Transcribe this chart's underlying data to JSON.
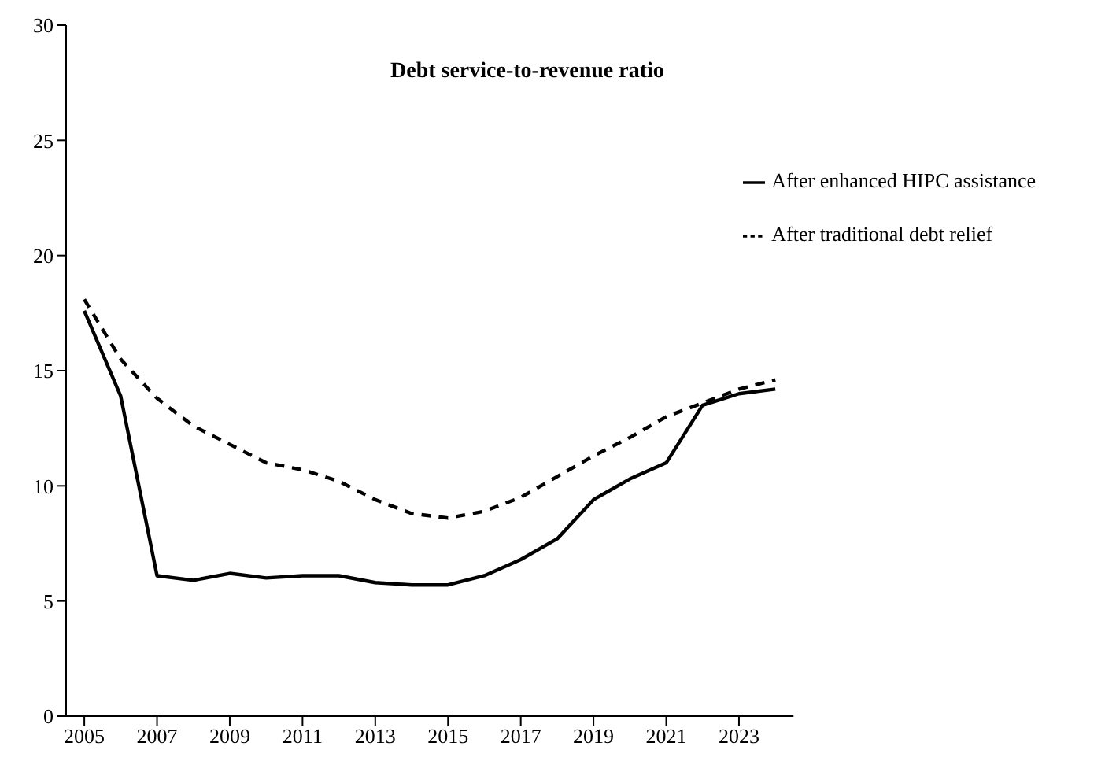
{
  "chart_data": {
    "type": "line",
    "title": "Debt service-to-revenue ratio",
    "x": [
      2005,
      2006,
      2007,
      2008,
      2009,
      2010,
      2011,
      2012,
      2013,
      2014,
      2015,
      2016,
      2017,
      2018,
      2019,
      2020,
      2021,
      2022,
      2023,
      2024
    ],
    "series": [
      {
        "name": "After traditional debt relief",
        "color": "#000000",
        "line_style": "dashed",
        "values": [
          18.1,
          15.5,
          13.8,
          12.6,
          11.8,
          11.0,
          10.7,
          10.2,
          9.4,
          8.8,
          8.6,
          8.9,
          9.5,
          10.4,
          11.3,
          12.1,
          13.0,
          13.6,
          14.2,
          14.6
        ]
      },
      {
        "name": "After enhanced HIPC assistance",
        "color": "#000000",
        "line_style": "solid",
        "values": [
          17.6,
          13.9,
          6.1,
          5.9,
          6.2,
          6.0,
          6.1,
          6.1,
          5.8,
          5.7,
          5.7,
          6.1,
          6.8,
          7.7,
          9.4,
          10.3,
          11.0,
          13.5,
          14.0,
          14.2
        ]
      }
    ],
    "xlim": [
      2004.5,
      2024.5
    ],
    "xticks": [
      2005,
      2007,
      2009,
      2011,
      2013,
      2015,
      2017,
      2019,
      2021,
      2023
    ],
    "ylim": [
      0,
      30
    ],
    "yticks": [
      0,
      5,
      10,
      15,
      20,
      25,
      30
    ],
    "grid": false,
    "legend": "top right",
    "marker": "none"
  }
}
